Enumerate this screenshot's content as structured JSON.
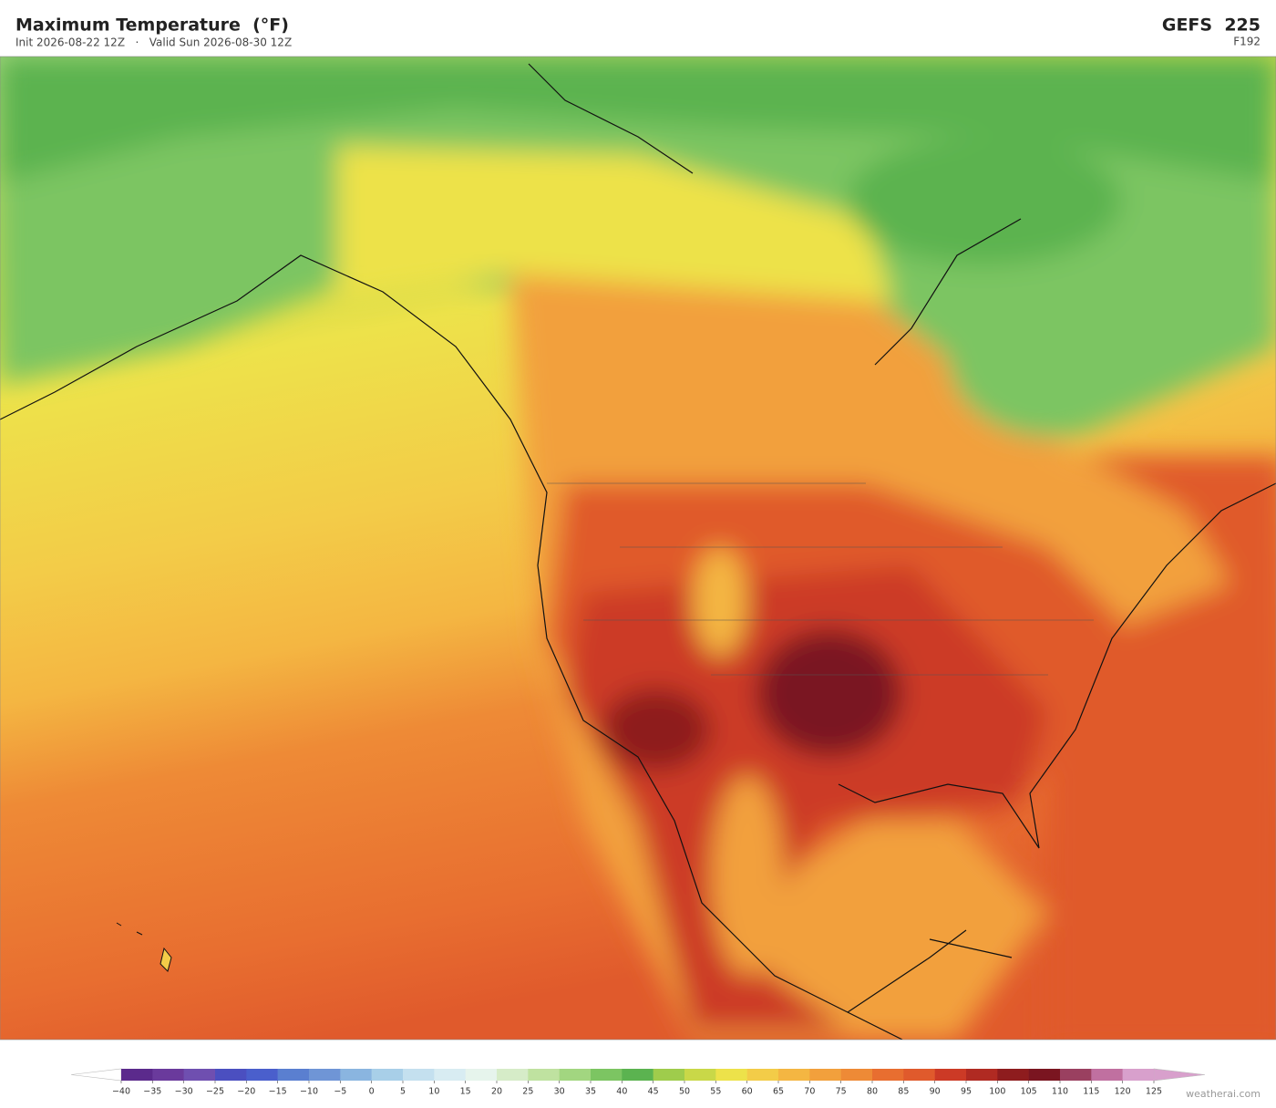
{
  "header": {
    "title": "Maximum Temperature  (°F)",
    "subtitle": "Init 2026-08-22 12Z   ·   Valid Sun 2026-08-30 12Z",
    "model": "GEFS  225",
    "forecast_hour": "F192"
  },
  "colorbar": {
    "ticks": [
      {
        "value": -40,
        "label": "−40"
      },
      {
        "value": -35,
        "label": "−35"
      },
      {
        "value": -30,
        "label": "−30"
      },
      {
        "value": -25,
        "label": "−25"
      },
      {
        "value": -20,
        "label": "−20"
      },
      {
        "value": -15,
        "label": "−15"
      },
      {
        "value": -10,
        "label": "−10"
      },
      {
        "value": -5,
        "label": "−5"
      },
      0,
      5,
      10,
      15,
      20,
      25,
      30,
      35,
      40,
      45,
      50,
      55,
      60,
      65,
      70,
      75,
      80,
      85,
      90,
      95,
      100,
      105,
      110,
      115,
      120,
      125
    ],
    "colors": [
      "#5b2a8c",
      "#6a3a9c",
      "#6f4fb0",
      "#4b4fc0",
      "#4a5fcc",
      "#5a7fd0",
      "#6f95d6",
      "#8ab5e0",
      "#a8cfe8",
      "#c4e0ef",
      "#d8ecf2",
      "#e6f4ec",
      "#d6ecc8",
      "#bfe2a0",
      "#a2d680",
      "#7cc562",
      "#5bb350",
      "#9fcc4c",
      "#c9d848",
      "#ede24a",
      "#f3cc48",
      "#f4b642",
      "#f2a03c",
      "#ee8a36",
      "#e86e30",
      "#e05a2c",
      "#cc3a26",
      "#b02a22",
      "#8e1c1e",
      "#7a1520",
      "#9a4060",
      "#c070a0",
      "#d8a0cc"
    ],
    "under_color": "#ffffff",
    "over_color": "#d8a0cc"
  },
  "watermark": "weatherai.com"
}
